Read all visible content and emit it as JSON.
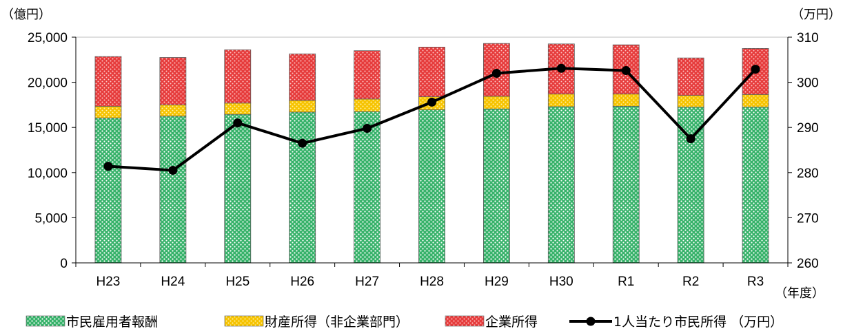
{
  "chart_data": {
    "type": "bar",
    "stacked": true,
    "categories": [
      "H23",
      "H24",
      "H25",
      "H26",
      "H27",
      "H28",
      "H29",
      "H30",
      "R1",
      "R2",
      "R3"
    ],
    "series": [
      {
        "name": "市民雇用者報酬",
        "type": "bar",
        "axis": "left",
        "color": "#2eaa5e",
        "values": [
          16050,
          16250,
          16450,
          16700,
          16750,
          16950,
          17050,
          17300,
          17350,
          17250,
          17250
        ]
      },
      {
        "name": "財産所得（非企業部門）",
        "type": "bar",
        "axis": "left",
        "color": "#f4c400",
        "values": [
          1300,
          1250,
          1250,
          1300,
          1400,
          1450,
          1400,
          1400,
          1350,
          1300,
          1400
        ]
      },
      {
        "name": "企業所得",
        "type": "bar",
        "axis": "left",
        "color": "#e8383d",
        "values": [
          5500,
          5250,
          5900,
          5150,
          5350,
          5500,
          5850,
          5550,
          5450,
          4150,
          5100
        ]
      },
      {
        "name": "1人当たり市民所得（万円）",
        "type": "line",
        "axis": "right",
        "color": "#000000",
        "values": [
          281.4,
          280.5,
          291.0,
          286.5,
          289.8,
          295.6,
          302.0,
          303.1,
          302.6,
          287.5,
          302.9
        ]
      }
    ],
    "y_left": {
      "unit": "（億円）",
      "ylim": [
        0,
        25000
      ],
      "ticks": [
        "0",
        "5,000",
        "10,000",
        "15,000",
        "20,000",
        "25,000"
      ]
    },
    "y_right": {
      "unit": "（万円）",
      "ylim": [
        260,
        310
      ],
      "ticks": [
        "260",
        "270",
        "280",
        "290",
        "300",
        "310"
      ]
    },
    "x_unit": "（年度）",
    "legend": {
      "position": "bottom",
      "items": [
        "市民雇用者報酬",
        "財産所得（非企業部門）",
        "企業所得",
        "1人当たり市民所得 （万円）"
      ]
    }
  }
}
